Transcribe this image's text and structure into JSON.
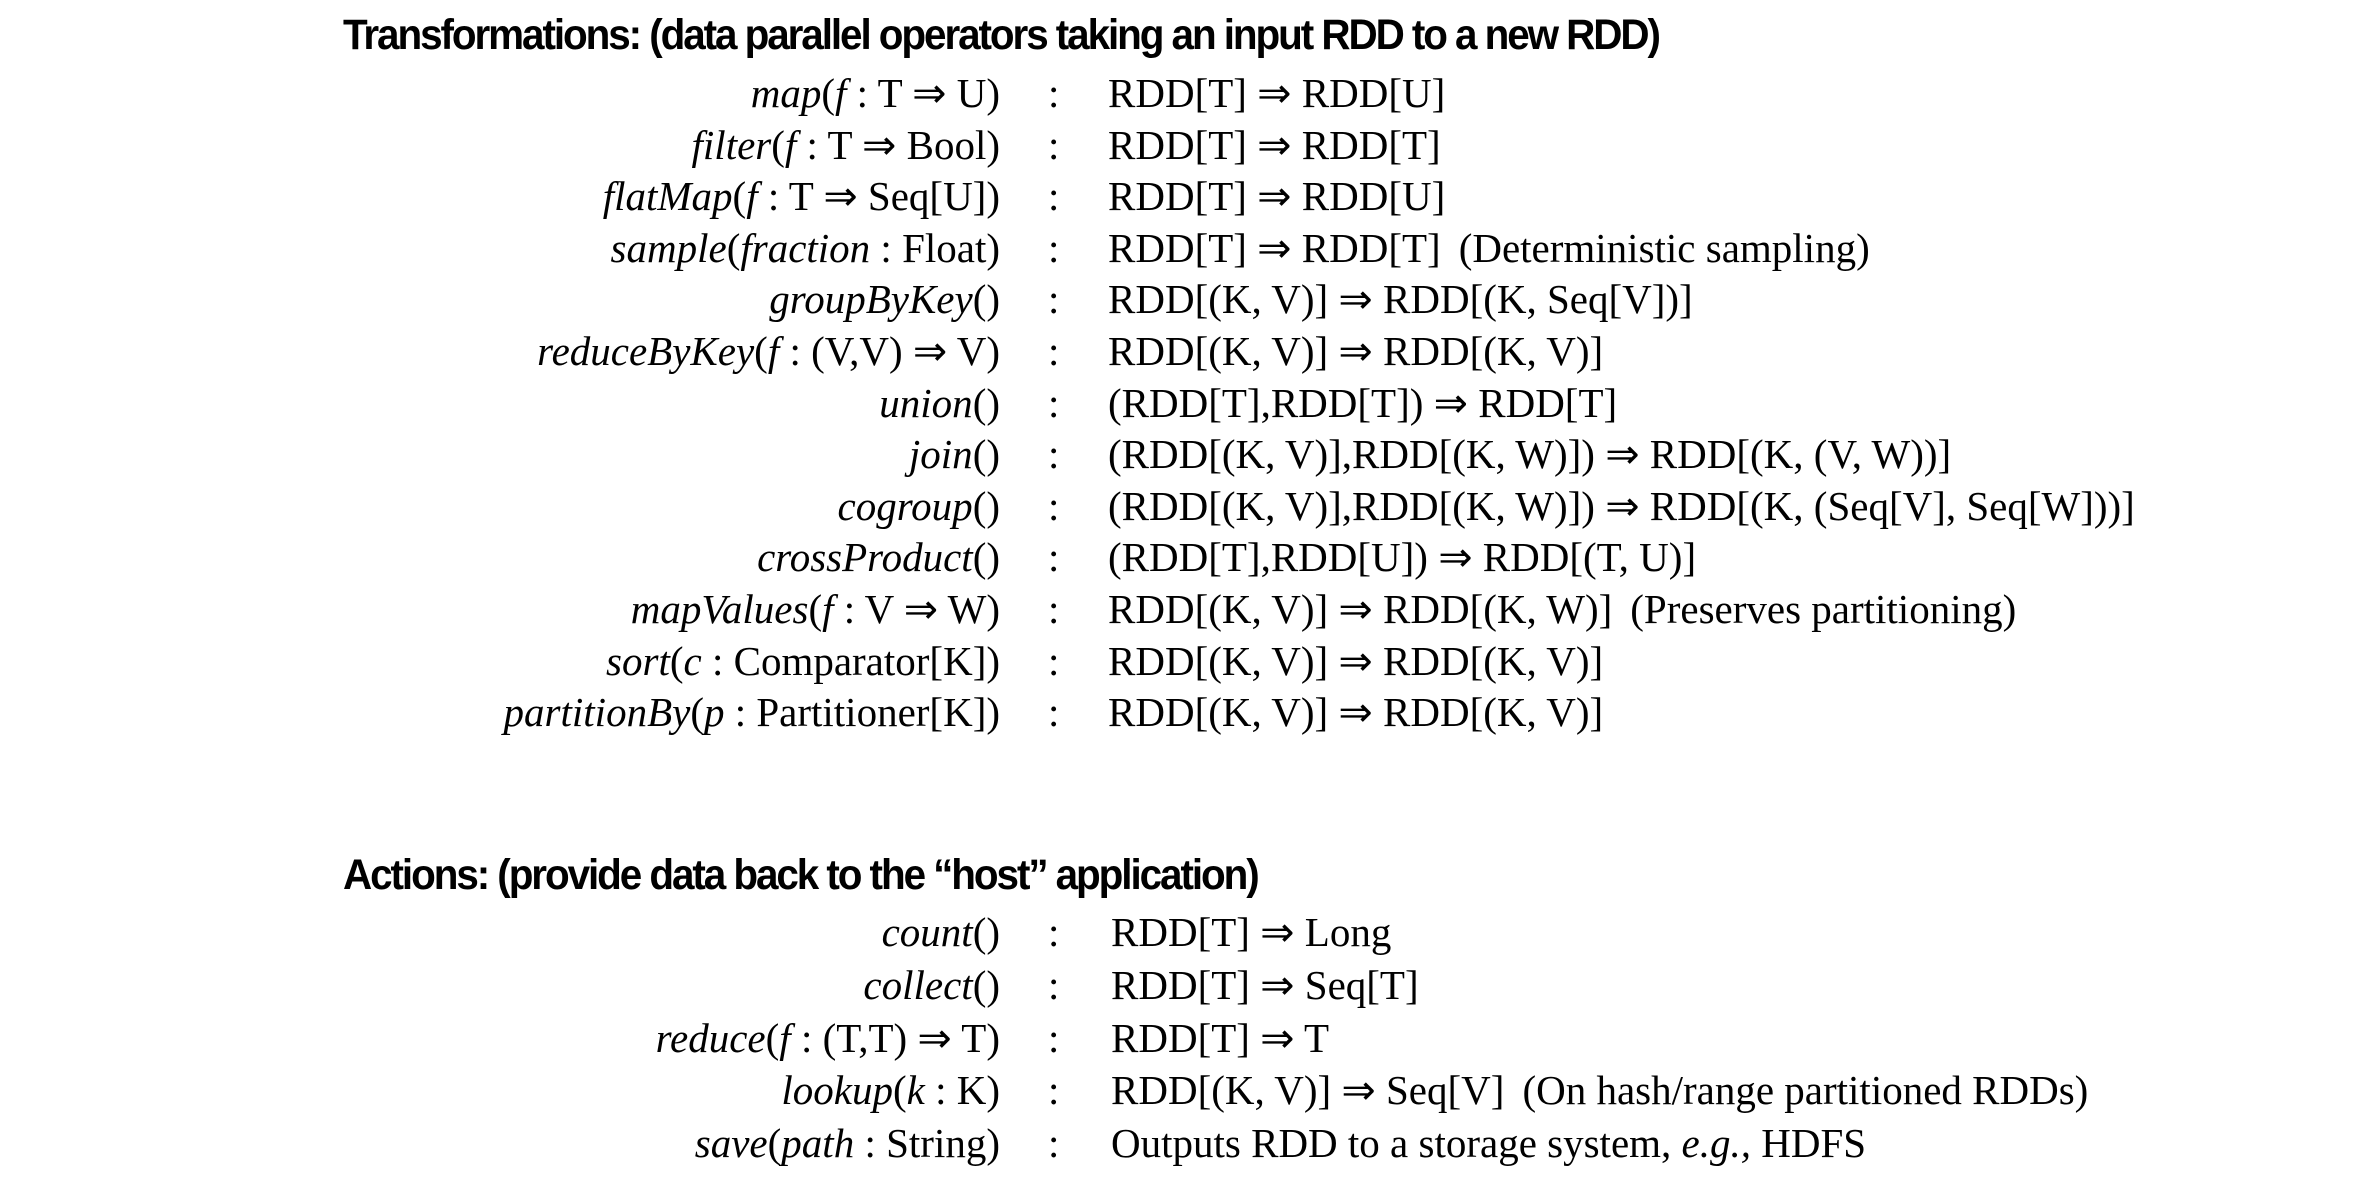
{
  "transformations": {
    "heading": "Transformations: (data parallel operators taking an input RDD to a new RDD)",
    "rows": [
      {
        "fn": "map",
        "pre": "(",
        "var": "f",
        "type": " : T ⇒ U)",
        "result": "RDD[T] ⇒ RDD[U]",
        "note": ""
      },
      {
        "fn": "filter",
        "pre": "(",
        "var": "f",
        "type": " : T ⇒ Bool)",
        "result": "RDD[T] ⇒ RDD[T]",
        "note": ""
      },
      {
        "fn": "flatMap",
        "pre": "(",
        "var": "f",
        "type": " : T ⇒ Seq[U])",
        "result": "RDD[T] ⇒ RDD[U]",
        "note": ""
      },
      {
        "fn": "sample",
        "pre": "(",
        "var": "fraction",
        "type": " : Float)",
        "result": "RDD[T] ⇒ RDD[T]",
        "note": "(Deterministic sampling)"
      },
      {
        "fn": "groupByKey",
        "pre": "()",
        "var": "",
        "type": "",
        "result": "RDD[(K, V)] ⇒ RDD[(K, Seq[V])]",
        "note": ""
      },
      {
        "fn": "reduceByKey",
        "pre": "(",
        "var": "f",
        "type": " : (V,V) ⇒ V)",
        "result": "RDD[(K, V)] ⇒ RDD[(K, V)]",
        "note": ""
      },
      {
        "fn": "union",
        "pre": "()",
        "var": "",
        "type": "",
        "result": "(RDD[T],RDD[T]) ⇒ RDD[T]",
        "note": ""
      },
      {
        "fn": "join",
        "pre": "()",
        "var": "",
        "type": "",
        "result": "(RDD[(K, V)],RDD[(K, W)]) ⇒ RDD[(K, (V, W))]",
        "note": ""
      },
      {
        "fn": "cogroup",
        "pre": "()",
        "var": "",
        "type": "",
        "result": "(RDD[(K, V)],RDD[(K, W)]) ⇒ RDD[(K, (Seq[V], Seq[W]))]",
        "note": ""
      },
      {
        "fn": "crossProduct",
        "pre": "()",
        "var": "",
        "type": "",
        "result": "(RDD[T],RDD[U]) ⇒ RDD[(T, U)]",
        "note": ""
      },
      {
        "fn": "mapValues",
        "pre": "(",
        "var": "f",
        "type": " : V ⇒ W)",
        "result": "RDD[(K, V)] ⇒ RDD[(K, W)]",
        "note": "(Preserves partitioning)"
      },
      {
        "fn": "sort",
        "pre": "(",
        "var": "c",
        "type": " : Comparator[K])",
        "result": "RDD[(K, V)] ⇒ RDD[(K, V)]",
        "note": ""
      },
      {
        "fn": "partitionBy",
        "pre": "(",
        "var": "p",
        "type": " : Partitioner[K])",
        "result": "RDD[(K, V)] ⇒ RDD[(K, V)]",
        "note": ""
      }
    ]
  },
  "actions": {
    "heading": "Actions: (provide data back to the “host” application)",
    "rows": [
      {
        "fn": "count",
        "pre": "()",
        "var": "",
        "type": "",
        "result": "RDD[T] ⇒ Long",
        "note": ""
      },
      {
        "fn": "collect",
        "pre": "()",
        "var": "",
        "type": "",
        "result": "RDD[T] ⇒ Seq[T]",
        "note": ""
      },
      {
        "fn": "reduce",
        "pre": "(",
        "var": "f",
        "type": " : (T,T) ⇒ T)",
        "result": "RDD[T] ⇒ T",
        "note": ""
      },
      {
        "fn": "lookup",
        "pre": "(",
        "var": "k",
        "type": " : K)",
        "result": "RDD[(K, V)] ⇒ Seq[V]",
        "note": "(On hash/range partitioned RDDs)"
      },
      {
        "fn": "save",
        "pre": "(",
        "var": "path",
        "type": " : String)",
        "result": "Outputs RDD to a storage system, ",
        "result_em": "e.g.,",
        "result_tail": " HDFS",
        "note": ""
      }
    ]
  },
  "separator": ":"
}
